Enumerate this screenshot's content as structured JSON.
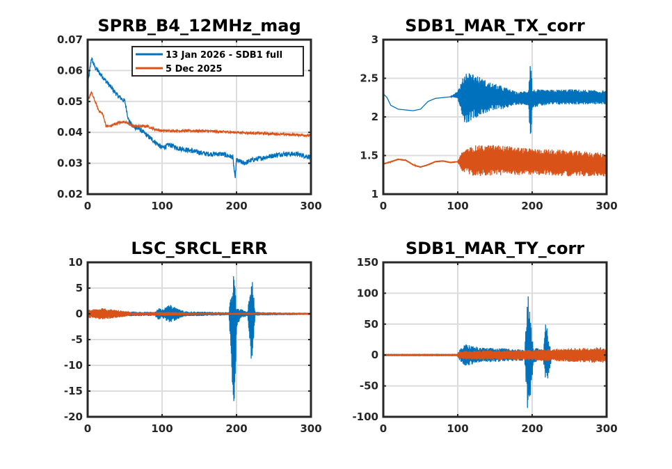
{
  "chart_data": [
    {
      "type": "line",
      "title": "SPRB_B4_12MHz_mag",
      "xlabel": "",
      "ylabel": "",
      "xlim": [
        0,
        300
      ],
      "ylim": [
        0.02,
        0.07
      ],
      "xticks": [
        0,
        100,
        200,
        300
      ],
      "yticks": [
        0.02,
        0.03,
        0.04,
        0.05,
        0.06,
        0.07
      ],
      "ytick_labels": [
        "0.02",
        "0.03",
        "0.04",
        "0.05",
        "0.06",
        "0.07"
      ],
      "grid": true,
      "legend": {
        "position": "top-right",
        "entries": [
          "13 Jan 2026 - SDB1 full",
          "5 Dec 2025"
        ]
      },
      "series": [
        {
          "name": "13 Jan 2026 - SDB1 full",
          "color": "#0072BD",
          "x": [
            0,
            5,
            10,
            20,
            30,
            40,
            50,
            55,
            60,
            70,
            80,
            90,
            100,
            110,
            120,
            140,
            160,
            180,
            195,
            198,
            200,
            210,
            220,
            240,
            260,
            280,
            300
          ],
          "y": [
            0.055,
            0.064,
            0.061,
            0.058,
            0.055,
            0.052,
            0.05,
            0.044,
            0.042,
            0.041,
            0.039,
            0.037,
            0.035,
            0.036,
            0.035,
            0.034,
            0.033,
            0.033,
            0.032,
            0.025,
            0.031,
            0.03,
            0.031,
            0.032,
            0.033,
            0.033,
            0.032
          ],
          "noise": 0.0008
        },
        {
          "name": "5 Dec 2025",
          "color": "#D95319",
          "x": [
            0,
            5,
            10,
            15,
            20,
            25,
            30,
            40,
            50,
            60,
            70,
            80,
            90,
            100,
            150,
            200,
            250,
            300
          ],
          "y": [
            0.05,
            0.053,
            0.05,
            0.047,
            0.046,
            0.042,
            0.042,
            0.043,
            0.0435,
            0.042,
            0.042,
            0.042,
            0.041,
            0.0405,
            0.0405,
            0.04,
            0.0395,
            0.039
          ],
          "noise": 0.0004
        }
      ]
    },
    {
      "type": "line",
      "title": "SDB1_MAR_TX_corr",
      "xlabel": "",
      "ylabel": "",
      "xlim": [
        0,
        300
      ],
      "ylim": [
        1,
        3
      ],
      "xticks": [
        0,
        100,
        200,
        300
      ],
      "yticks": [
        1,
        1.5,
        2,
        2.5,
        3
      ],
      "ytick_labels": [
        "1",
        "1.5",
        "2",
        "2.5",
        "3"
      ],
      "grid": true,
      "series": [
        {
          "name": "13 Jan 2026 - SDB1 full",
          "color": "#0072BD",
          "x": [
            0,
            5,
            10,
            20,
            30,
            40,
            50,
            60,
            70,
            80,
            90,
            100,
            105,
            110,
            120,
            140,
            160,
            180,
            195,
            198,
            200,
            220,
            250,
            300
          ],
          "y": [
            2.3,
            2.25,
            2.15,
            2.1,
            2.09,
            2.08,
            2.1,
            2.2,
            2.24,
            2.25,
            2.26,
            2.29,
            2.25,
            2.25,
            2.27,
            2.26,
            2.25,
            2.24,
            2.25,
            2.25,
            2.24,
            2.25,
            2.26,
            2.25
          ],
          "amplitude": [
            0,
            0,
            0,
            0,
            0,
            0,
            0,
            0,
            0,
            0,
            0,
            0.05,
            0.2,
            0.35,
            0.3,
            0.2,
            0.15,
            0.08,
            0.1,
            0.6,
            0.12,
            0.1,
            0.1,
            0.09
          ]
        },
        {
          "name": "5 Dec 2025",
          "color": "#D95319",
          "x": [
            0,
            20,
            30,
            40,
            50,
            60,
            70,
            80,
            90,
            100,
            105,
            120,
            150,
            200,
            250,
            300
          ],
          "y": [
            1.39,
            1.45,
            1.44,
            1.38,
            1.35,
            1.38,
            1.42,
            1.43,
            1.41,
            1.42,
            1.42,
            1.43,
            1.44,
            1.42,
            1.4,
            1.38
          ],
          "amplitude": [
            0.01,
            0.01,
            0.01,
            0.01,
            0.01,
            0.01,
            0.01,
            0.01,
            0.01,
            0.01,
            0.12,
            0.2,
            0.2,
            0.17,
            0.17,
            0.15
          ]
        }
      ]
    },
    {
      "type": "line",
      "title": "LSC_SRCL_ERR",
      "xlabel": "",
      "ylabel": "",
      "xlim": [
        0,
        300
      ],
      "ylim": [
        -20,
        10
      ],
      "xticks": [
        0,
        100,
        200,
        300
      ],
      "yticks": [
        -20,
        -15,
        -10,
        -5,
        0,
        5,
        10
      ],
      "ytick_labels": [
        "-20",
        "-15",
        "-10",
        "-5",
        "0",
        "5",
        "10"
      ],
      "grid": true,
      "series": [
        {
          "name": "13 Jan 2026 - SDB1 full",
          "color": "#0072BD",
          "x": [
            0,
            50,
            90,
            95,
            100,
            110,
            120,
            130,
            190,
            194,
            196,
            198,
            200,
            205,
            215,
            218,
            220,
            222,
            225,
            240,
            300
          ],
          "y": [
            0,
            0,
            0,
            0,
            0,
            0,
            0,
            0,
            0,
            -3,
            -5,
            -6,
            -1,
            0,
            0,
            -1,
            -1.5,
            -1,
            0,
            0,
            0
          ],
          "amplitude": [
            0.6,
            0.5,
            0.4,
            1.2,
            0.8,
            1.8,
            1.2,
            0.5,
            0.3,
            10,
            13,
            12,
            2,
            1,
            0.4,
            6,
            8,
            7,
            0.4,
            0.3,
            0.2
          ]
        },
        {
          "name": "5 Dec 2025",
          "color": "#D95319",
          "x": [
            0,
            20,
            40,
            60,
            80,
            100,
            150,
            200,
            250,
            300
          ],
          "y": [
            0,
            0,
            0,
            0,
            0,
            0,
            0,
            0,
            0,
            0
          ],
          "amplitude": [
            0.8,
            1.1,
            0.8,
            0.3,
            0.3,
            0.4,
            0.2,
            0.2,
            0.2,
            0.2
          ]
        }
      ]
    },
    {
      "type": "line",
      "title": "SDB1_MAR_TY_corr",
      "xlabel": "",
      "ylabel": "",
      "xlim": [
        0,
        300
      ],
      "ylim": [
        -100,
        150
      ],
      "xticks": [
        0,
        100,
        200,
        300
      ],
      "yticks": [
        -100,
        -50,
        0,
        50,
        100,
        150
      ],
      "ytick_labels": [
        "-100",
        "-50",
        "0",
        "50",
        "100",
        "150"
      ],
      "grid": true,
      "series": [
        {
          "name": "13 Jan 2026 - SDB1 full",
          "color": "#0072BD",
          "x": [
            0,
            99,
            102,
            110,
            130,
            160,
            190,
            194,
            196,
            198,
            202,
            215,
            218,
            220,
            222,
            226,
            300
          ],
          "y": [
            0,
            0,
            0,
            0,
            0,
            0,
            0,
            5,
            0,
            -5,
            0,
            0,
            5,
            0,
            -5,
            0,
            0
          ],
          "amplitude": [
            0.5,
            0.5,
            8,
            18,
            12,
            11,
            9,
            100,
            95,
            60,
            12,
            9,
            50,
            45,
            30,
            8,
            10
          ]
        },
        {
          "name": "5 Dec 2025",
          "color": "#D95319",
          "x": [
            0,
            99,
            102,
            150,
            200,
            250,
            300
          ],
          "y": [
            0,
            0,
            0,
            0,
            0,
            0,
            0
          ],
          "amplitude": [
            0.5,
            0.6,
            7,
            8,
            9,
            11,
            13
          ]
        }
      ]
    }
  ]
}
